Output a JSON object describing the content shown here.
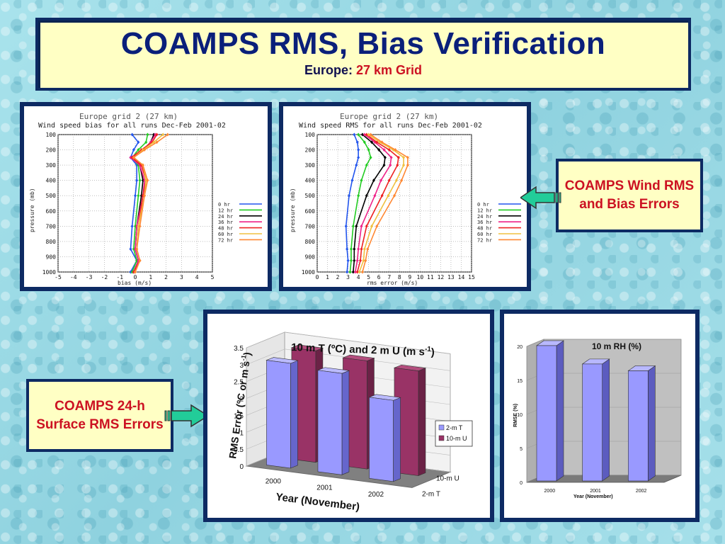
{
  "header": {
    "title": "COAMPS RMS, Bias Verification",
    "subtitle_prefix": "Europe:",
    "subtitle_value": "27 km Grid"
  },
  "callouts": {
    "wind": "COAMPS Wind RMS and Bias Errors",
    "surface": "COAMPS 24-h Surface RMS Errors"
  },
  "colors": {
    "0 hr": "#2255ee",
    "12 hr": "#22cc22",
    "24 hr": "#000000",
    "36 hr": "#ee2288",
    "48 hr": "#ee2222",
    "60 hr": "#f0c040",
    "72 hr": "#ff8833",
    "bar_t": "#9999ff",
    "bar_u": "#993366"
  },
  "chart_data": [
    {
      "type": "line",
      "header": "Europe grid 2 (27 km)",
      "title": "Wind speed bias for all runs Dec-Feb 2001-02",
      "xlabel": "bias (m/s)",
      "ylabel": "pressure (mb)",
      "xlim": [
        -5,
        5
      ],
      "ylim": [
        100,
        1000
      ],
      "x_ticks": [
        -5,
        -4,
        -3,
        -2,
        -1,
        0,
        1,
        2,
        3,
        4,
        5
      ],
      "y_ticks": [
        100,
        200,
        300,
        400,
        500,
        600,
        700,
        800,
        900,
        1000
      ],
      "pressure": [
        100,
        150,
        200,
        250,
        300,
        400,
        500,
        700,
        850,
        925,
        1000
      ],
      "series": [
        {
          "name": "0 hr",
          "values": [
            -0.2,
            0.2,
            -0.1,
            -0.3,
            0.1,
            0.1,
            0.0,
            -0.2,
            -0.3,
            0.1,
            -0.3
          ]
        },
        {
          "name": "12 hr",
          "values": [
            0.8,
            0.7,
            0.2,
            -0.2,
            0.2,
            0.3,
            0.2,
            0.0,
            -0.1,
            0.1,
            -0.2
          ]
        },
        {
          "name": "24 hr",
          "values": [
            1.2,
            1.0,
            0.5,
            -0.2,
            0.3,
            0.5,
            0.4,
            0.1,
            0.0,
            0.2,
            -0.1
          ]
        },
        {
          "name": "36 hr",
          "values": [
            1.3,
            1.0,
            0.5,
            -0.3,
            0.3,
            0.6,
            0.5,
            0.1,
            0.0,
            0.2,
            -0.1
          ]
        },
        {
          "name": "48 hr",
          "values": [
            1.4,
            1.1,
            0.4,
            -0.2,
            0.4,
            0.7,
            0.5,
            0.2,
            0.1,
            0.3,
            -0.1
          ]
        },
        {
          "name": "60 hr",
          "values": [
            1.8,
            1.2,
            0.5,
            -0.1,
            0.5,
            0.7,
            0.6,
            0.2,
            0.1,
            0.3,
            0.0
          ]
        },
        {
          "name": "72 hr",
          "values": [
            2.1,
            1.4,
            0.6,
            -0.1,
            0.5,
            0.8,
            0.6,
            0.3,
            0.1,
            0.3,
            0.0
          ]
        }
      ]
    },
    {
      "type": "line",
      "header": "Europe grid 2 (27 km)",
      "title": "Wind speed RMS for all runs Dec-Feb 2001-02",
      "xlabel": "rms error (m/s)",
      "ylabel": "pressure (mb)",
      "xlim": [
        0,
        15
      ],
      "ylim": [
        100,
        1000
      ],
      "x_ticks": [
        0,
        1,
        2,
        3,
        4,
        5,
        6,
        7,
        8,
        9,
        10,
        11,
        12,
        13,
        14,
        15
      ],
      "y_ticks": [
        100,
        200,
        300,
        400,
        500,
        600,
        700,
        800,
        900,
        1000
      ],
      "pressure": [
        100,
        150,
        200,
        250,
        300,
        400,
        500,
        700,
        850,
        925,
        1000
      ],
      "series": [
        {
          "name": "0 hr",
          "values": [
            3.6,
            3.9,
            4.0,
            4.0,
            3.8,
            3.4,
            3.1,
            2.8,
            2.9,
            3.0,
            2.9
          ]
        },
        {
          "name": "12 hr",
          "values": [
            4.0,
            4.6,
            5.0,
            5.2,
            4.8,
            4.3,
            4.0,
            3.5,
            3.3,
            3.3,
            3.2
          ]
        },
        {
          "name": "24 hr",
          "values": [
            4.4,
            5.3,
            6.0,
            6.6,
            6.5,
            5.5,
            4.8,
            3.8,
            3.6,
            3.6,
            3.5
          ]
        },
        {
          "name": "36 hr",
          "values": [
            4.6,
            5.6,
            6.5,
            7.2,
            7.1,
            6.2,
            5.6,
            4.3,
            4.0,
            3.9,
            3.7
          ]
        },
        {
          "name": "48 hr",
          "values": [
            4.8,
            5.8,
            7.0,
            7.9,
            7.8,
            7.0,
            6.3,
            4.8,
            4.3,
            4.2,
            3.9
          ]
        },
        {
          "name": "60 hr",
          "values": [
            5.0,
            6.1,
            7.4,
            8.4,
            8.4,
            7.7,
            6.9,
            5.3,
            4.6,
            4.5,
            4.1
          ]
        },
        {
          "name": "72 hr",
          "values": [
            5.2,
            6.3,
            7.6,
            8.8,
            8.8,
            8.2,
            7.5,
            5.8,
            4.9,
            4.7,
            4.4
          ]
        }
      ]
    },
    {
      "type": "bar",
      "title": "10 m T (ºC) and 2 m U (m s-1)",
      "title_main": "10 m T (ºC) and 2 m U ",
      "title_unit": "(m s",
      "title_sup": "-1",
      "title_close": ")",
      "xlabel": "Year (November)",
      "ylabel_main": "RMS Error (ºC or m s",
      "ylabel_sup": "-1",
      "ylabel_close": ")",
      "categories": [
        "2000",
        "2001",
        "2002"
      ],
      "depth_labels": [
        "10-m U",
        "2-m T"
      ],
      "y_ticks": [
        "0",
        "0.5",
        "1",
        "1.5",
        "2",
        "2.5",
        "3",
        "3.5"
      ],
      "ylim": [
        0,
        3.5
      ],
      "series": [
        {
          "name": "2-m T",
          "values": [
            3.1,
            3.0,
            2.4
          ]
        },
        {
          "name": "10-m U",
          "values": [
            3.3,
            3.2,
            3.1
          ]
        }
      ]
    },
    {
      "type": "bar",
      "title": "10 m RH (%)",
      "xlabel": "Year (November)",
      "ylabel": "RMSE (%)",
      "categories": [
        "2000",
        "2001",
        "2002"
      ],
      "y_ticks": [
        "0",
        "5",
        "10",
        "15",
        "20"
      ],
      "ylim": [
        0,
        20
      ],
      "values": [
        19.9,
        17.2,
        16.2
      ]
    }
  ]
}
